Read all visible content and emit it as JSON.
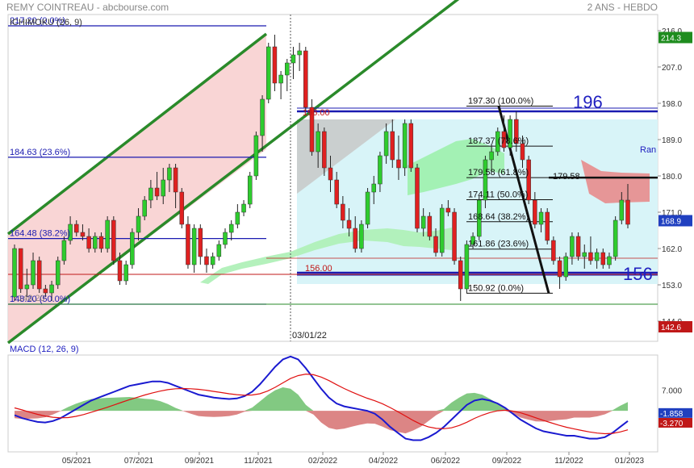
{
  "header": {
    "title": "REMY COINTREAU - abcbourse.com",
    "period": "2 ANS - HEBDO"
  },
  "chart_data": [
    {
      "type": "candlestick",
      "indicator_label": "ICHIMOKU (26, 9)",
      "y_axis_ticks": [
        216.0,
        207.0,
        198.0,
        189.0,
        180.0,
        171.0,
        162.0,
        153.0,
        144.0
      ],
      "ylim": [
        139.0,
        220.0
      ],
      "x_axis_ticks": [
        "05/2021",
        "07/2021",
        "09/2021",
        "11/2021",
        "02/2022",
        "04/2022",
        "06/2022",
        "09/2022",
        "11/2022",
        "01/2023"
      ],
      "price_badges": [
        {
          "value": "214.3",
          "color": "#1e8c1e"
        },
        {
          "value": "168.9",
          "color": "#2040c0"
        },
        {
          "value": "142.6",
          "color": "#c01818"
        }
      ],
      "marker_date": "03/01/22",
      "fib_left": [
        {
          "label": "217.20  (0.0%)",
          "value": 217.2
        },
        {
          "label": "184.63  (23.6%)",
          "value": 184.63
        },
        {
          "label": "164.48  (38.2%)",
          "value": 164.48
        },
        {
          "label": "148.20  (50.0%)",
          "value": 148.2
        }
      ],
      "fib_right": [
        {
          "label": "197.30  (100.0%)",
          "value": 197.3
        },
        {
          "label": "187.37  (78.6%)",
          "value": 187.37
        },
        {
          "label": "179.58  (61.8%)",
          "value": 179.58
        },
        {
          "label": "174.11  (50.0%)",
          "value": 174.11
        },
        {
          "label": "168.64  (38.2%)",
          "value": 168.64
        },
        {
          "label": "161.86  (23.6%)",
          "value": 161.86
        },
        {
          "label": "150.92  (0.0%)",
          "value": 150.92
        }
      ],
      "overlap_label": "148.20",
      "levels": [
        {
          "label": "196.00",
          "value": 196.0
        },
        {
          "label": "156.00",
          "value": 156.0
        },
        {
          "label": "179.58",
          "value": 179.58
        }
      ],
      "range_labels": {
        "top": "196",
        "bottom": "156",
        "side": "Ran"
      },
      "candles": [
        {
          "o": 150,
          "h": 163,
          "l": 149,
          "c": 162
        },
        {
          "o": 162,
          "h": 162,
          "l": 151,
          "c": 152
        },
        {
          "o": 152,
          "h": 157,
          "l": 150,
          "c": 153
        },
        {
          "o": 153,
          "h": 161,
          "l": 152,
          "c": 159
        },
        {
          "o": 159,
          "h": 160,
          "l": 151,
          "c": 152
        },
        {
          "o": 152,
          "h": 153,
          "l": 150,
          "c": 151
        },
        {
          "o": 151,
          "h": 154,
          "l": 149,
          "c": 153
        },
        {
          "o": 153,
          "h": 160,
          "l": 152,
          "c": 159
        },
        {
          "o": 159,
          "h": 165,
          "l": 158,
          "c": 164
        },
        {
          "o": 164,
          "h": 170,
          "l": 163,
          "c": 168
        },
        {
          "o": 168,
          "h": 169,
          "l": 165,
          "c": 166
        },
        {
          "o": 166,
          "h": 168,
          "l": 164,
          "c": 165
        },
        {
          "o": 165,
          "h": 167,
          "l": 161,
          "c": 162
        },
        {
          "o": 162,
          "h": 166,
          "l": 161,
          "c": 165
        },
        {
          "o": 165,
          "h": 166,
          "l": 161,
          "c": 162
        },
        {
          "o": 162,
          "h": 170,
          "l": 161,
          "c": 169
        },
        {
          "o": 169,
          "h": 170,
          "l": 158,
          "c": 159
        },
        {
          "o": 159,
          "h": 161,
          "l": 153,
          "c": 154
        },
        {
          "o": 154,
          "h": 159,
          "l": 153,
          "c": 158
        },
        {
          "o": 158,
          "h": 167,
          "l": 157,
          "c": 166
        },
        {
          "o": 166,
          "h": 172,
          "l": 164,
          "c": 170
        },
        {
          "o": 170,
          "h": 175,
          "l": 169,
          "c": 174
        },
        {
          "o": 174,
          "h": 179,
          "l": 172,
          "c": 177
        },
        {
          "o": 177,
          "h": 181,
          "l": 174,
          "c": 175
        },
        {
          "o": 175,
          "h": 182,
          "l": 173,
          "c": 179
        },
        {
          "o": 179,
          "h": 183,
          "l": 176,
          "c": 182
        },
        {
          "o": 182,
          "h": 183,
          "l": 172,
          "c": 176
        },
        {
          "o": 176,
          "h": 177,
          "l": 167,
          "c": 168
        },
        {
          "o": 168,
          "h": 170,
          "l": 157,
          "c": 158
        },
        {
          "o": 158,
          "h": 168,
          "l": 156,
          "c": 167
        },
        {
          "o": 167,
          "h": 168,
          "l": 158,
          "c": 160
        },
        {
          "o": 160,
          "h": 162,
          "l": 156,
          "c": 158
        },
        {
          "o": 158,
          "h": 161,
          "l": 157,
          "c": 160
        },
        {
          "o": 160,
          "h": 164,
          "l": 159,
          "c": 163
        },
        {
          "o": 163,
          "h": 167,
          "l": 162,
          "c": 166
        },
        {
          "o": 166,
          "h": 169,
          "l": 164,
          "c": 168
        },
        {
          "o": 168,
          "h": 173,
          "l": 167,
          "c": 171
        },
        {
          "o": 171,
          "h": 174,
          "l": 170,
          "c": 173
        },
        {
          "o": 173,
          "h": 181,
          "l": 172,
          "c": 180
        },
        {
          "o": 180,
          "h": 191,
          "l": 179,
          "c": 190
        },
        {
          "o": 190,
          "h": 200,
          "l": 186,
          "c": 199
        },
        {
          "o": 199,
          "h": 213,
          "l": 198,
          "c": 212
        },
        {
          "o": 212,
          "h": 215,
          "l": 201,
          "c": 203
        },
        {
          "o": 203,
          "h": 206,
          "l": 199,
          "c": 205
        },
        {
          "o": 205,
          "h": 209,
          "l": 201,
          "c": 208
        },
        {
          "o": 208,
          "h": 212,
          "l": 204,
          "c": 210
        },
        {
          "o": 210,
          "h": 213,
          "l": 206,
          "c": 211
        },
        {
          "o": 211,
          "h": 212,
          "l": 196,
          "c": 197
        },
        {
          "o": 197,
          "h": 199,
          "l": 185,
          "c": 186
        },
        {
          "o": 186,
          "h": 193,
          "l": 182,
          "c": 191
        },
        {
          "o": 191,
          "h": 192,
          "l": 180,
          "c": 182
        },
        {
          "o": 182,
          "h": 185,
          "l": 176,
          "c": 179
        },
        {
          "o": 179,
          "h": 181,
          "l": 172,
          "c": 173
        },
        {
          "o": 173,
          "h": 175,
          "l": 167,
          "c": 169
        },
        {
          "o": 169,
          "h": 172,
          "l": 165,
          "c": 167
        },
        {
          "o": 167,
          "h": 170,
          "l": 161,
          "c": 162
        },
        {
          "o": 162,
          "h": 169,
          "l": 161,
          "c": 168
        },
        {
          "o": 168,
          "h": 177,
          "l": 167,
          "c": 176
        },
        {
          "o": 176,
          "h": 180,
          "l": 173,
          "c": 178
        },
        {
          "o": 178,
          "h": 186,
          "l": 176,
          "c": 185
        },
        {
          "o": 185,
          "h": 193,
          "l": 183,
          "c": 191
        },
        {
          "o": 191,
          "h": 194,
          "l": 182,
          "c": 184
        },
        {
          "o": 184,
          "h": 190,
          "l": 179,
          "c": 182
        },
        {
          "o": 182,
          "h": 194,
          "l": 180,
          "c": 193
        },
        {
          "o": 193,
          "h": 194,
          "l": 181,
          "c": 182
        },
        {
          "o": 182,
          "h": 183,
          "l": 166,
          "c": 167
        },
        {
          "o": 167,
          "h": 172,
          "l": 165,
          "c": 170
        },
        {
          "o": 170,
          "h": 171,
          "l": 164,
          "c": 165
        },
        {
          "o": 165,
          "h": 167,
          "l": 160,
          "c": 161
        },
        {
          "o": 161,
          "h": 173,
          "l": 160,
          "c": 172
        },
        {
          "o": 172,
          "h": 174,
          "l": 170,
          "c": 171
        },
        {
          "o": 171,
          "h": 172,
          "l": 158,
          "c": 159
        },
        {
          "o": 159,
          "h": 160,
          "l": 149,
          "c": 152
        },
        {
          "o": 152,
          "h": 164,
          "l": 151,
          "c": 163
        },
        {
          "o": 163,
          "h": 166,
          "l": 162,
          "c": 165
        },
        {
          "o": 165,
          "h": 175,
          "l": 164,
          "c": 174
        },
        {
          "o": 174,
          "h": 185,
          "l": 172,
          "c": 184
        },
        {
          "o": 184,
          "h": 188,
          "l": 181,
          "c": 186
        },
        {
          "o": 186,
          "h": 192,
          "l": 185,
          "c": 191
        },
        {
          "o": 191,
          "h": 195,
          "l": 186,
          "c": 187
        },
        {
          "o": 187,
          "h": 195,
          "l": 185,
          "c": 194
        },
        {
          "o": 194,
          "h": 196,
          "l": 186,
          "c": 188
        },
        {
          "o": 188,
          "h": 190,
          "l": 182,
          "c": 184
        },
        {
          "o": 184,
          "h": 185,
          "l": 173,
          "c": 174
        },
        {
          "o": 174,
          "h": 176,
          "l": 167,
          "c": 168
        },
        {
          "o": 168,
          "h": 172,
          "l": 166,
          "c": 171
        },
        {
          "o": 171,
          "h": 172,
          "l": 163,
          "c": 164
        },
        {
          "o": 164,
          "h": 165,
          "l": 158,
          "c": 159
        },
        {
          "o": 159,
          "h": 160,
          "l": 152,
          "c": 155
        },
        {
          "o": 155,
          "h": 161,
          "l": 154,
          "c": 160
        },
        {
          "o": 160,
          "h": 166,
          "l": 158,
          "c": 165
        },
        {
          "o": 165,
          "h": 166,
          "l": 159,
          "c": 160
        },
        {
          "o": 160,
          "h": 163,
          "l": 157,
          "c": 161
        },
        {
          "o": 161,
          "h": 165,
          "l": 158,
          "c": 159
        },
        {
          "o": 159,
          "h": 162,
          "l": 157,
          "c": 161
        },
        {
          "o": 161,
          "h": 162,
          "l": 157,
          "c": 158
        },
        {
          "o": 158,
          "h": 161,
          "l": 157,
          "c": 160
        },
        {
          "o": 160,
          "h": 170,
          "l": 159,
          "c": 169
        },
        {
          "o": 169,
          "h": 176,
          "l": 168,
          "c": 174
        },
        {
          "o": 174,
          "h": 178,
          "l": 167,
          "c": 168
        }
      ]
    },
    {
      "type": "line",
      "title": "MACD (12, 26, 9)",
      "y_axis_ticks": [
        7.0,
        0.0
      ],
      "ylim": [
        -14.0,
        19.0
      ],
      "value_badges": [
        {
          "value": "-1.858",
          "color": "#2040c0"
        },
        {
          "value": "-3.270",
          "color": "#c01818"
        }
      ],
      "series": [
        {
          "name": "MACD",
          "color": "#1a1ad0",
          "values": [
            -1.5,
            -2.5,
            -3.2,
            -3.8,
            -4.0,
            -3.5,
            -2.5,
            -1.0,
            0.5,
            2.0,
            3.5,
            4.5,
            5.5,
            6.5,
            7.5,
            8.5,
            9.0,
            9.5,
            10.0,
            10.0,
            9.5,
            8.5,
            7.5,
            6.5,
            5.5,
            5.0,
            4.5,
            4.2,
            4.0,
            4.2,
            5.0,
            6.5,
            9.0,
            12.0,
            15.0,
            17.5,
            18.5,
            17.5,
            14.5,
            11.0,
            7.5,
            4.5,
            2.5,
            1.5,
            1.0,
            0.5,
            0.0,
            -1.0,
            -3.0,
            -5.5,
            -7.5,
            -9.5,
            -10.0,
            -10.0,
            -9.0,
            -7.5,
            -5.5,
            -3.0,
            -0.5,
            2.0,
            3.5,
            4.0,
            3.5,
            2.5,
            1.0,
            -1.0,
            -3.0,
            -4.5,
            -6.0,
            -7.0,
            -7.5,
            -8.0,
            -8.5,
            -8.5,
            -9.0,
            -9.5,
            -9.5,
            -9.0,
            -7.5,
            -5.5,
            -3.5
          ]
        },
        {
          "name": "Signal",
          "color": "#e01010",
          "values": [
            1.0,
            0.3,
            -0.5,
            -1.2,
            -1.8,
            -2.2,
            -2.4,
            -2.3,
            -1.9,
            -1.3,
            -0.5,
            0.3,
            1.1,
            2.0,
            2.9,
            3.8,
            4.6,
            5.4,
            6.1,
            6.7,
            7.2,
            7.5,
            7.6,
            7.5,
            7.3,
            7.0,
            6.6,
            6.2,
            5.8,
            5.5,
            5.3,
            5.4,
            5.8,
            6.7,
            8.0,
            9.5,
            11.0,
            12.0,
            12.5,
            12.3,
            11.5,
            10.3,
            8.9,
            7.6,
            6.4,
            5.3,
            4.3,
            3.4,
            2.4,
            1.1,
            -0.3,
            -1.8,
            -3.3,
            -4.6,
            -5.5,
            -6.0,
            -6.1,
            -5.8,
            -5.0,
            -3.9,
            -2.6,
            -1.5,
            -0.6,
            0.0,
            0.2,
            -0.1,
            -0.7,
            -1.5,
            -2.4,
            -3.3,
            -4.1,
            -4.9,
            -5.6,
            -6.2,
            -6.7,
            -7.2,
            -7.6,
            -7.8,
            -7.7,
            -7.2,
            -6.5
          ]
        }
      ]
    }
  ]
}
